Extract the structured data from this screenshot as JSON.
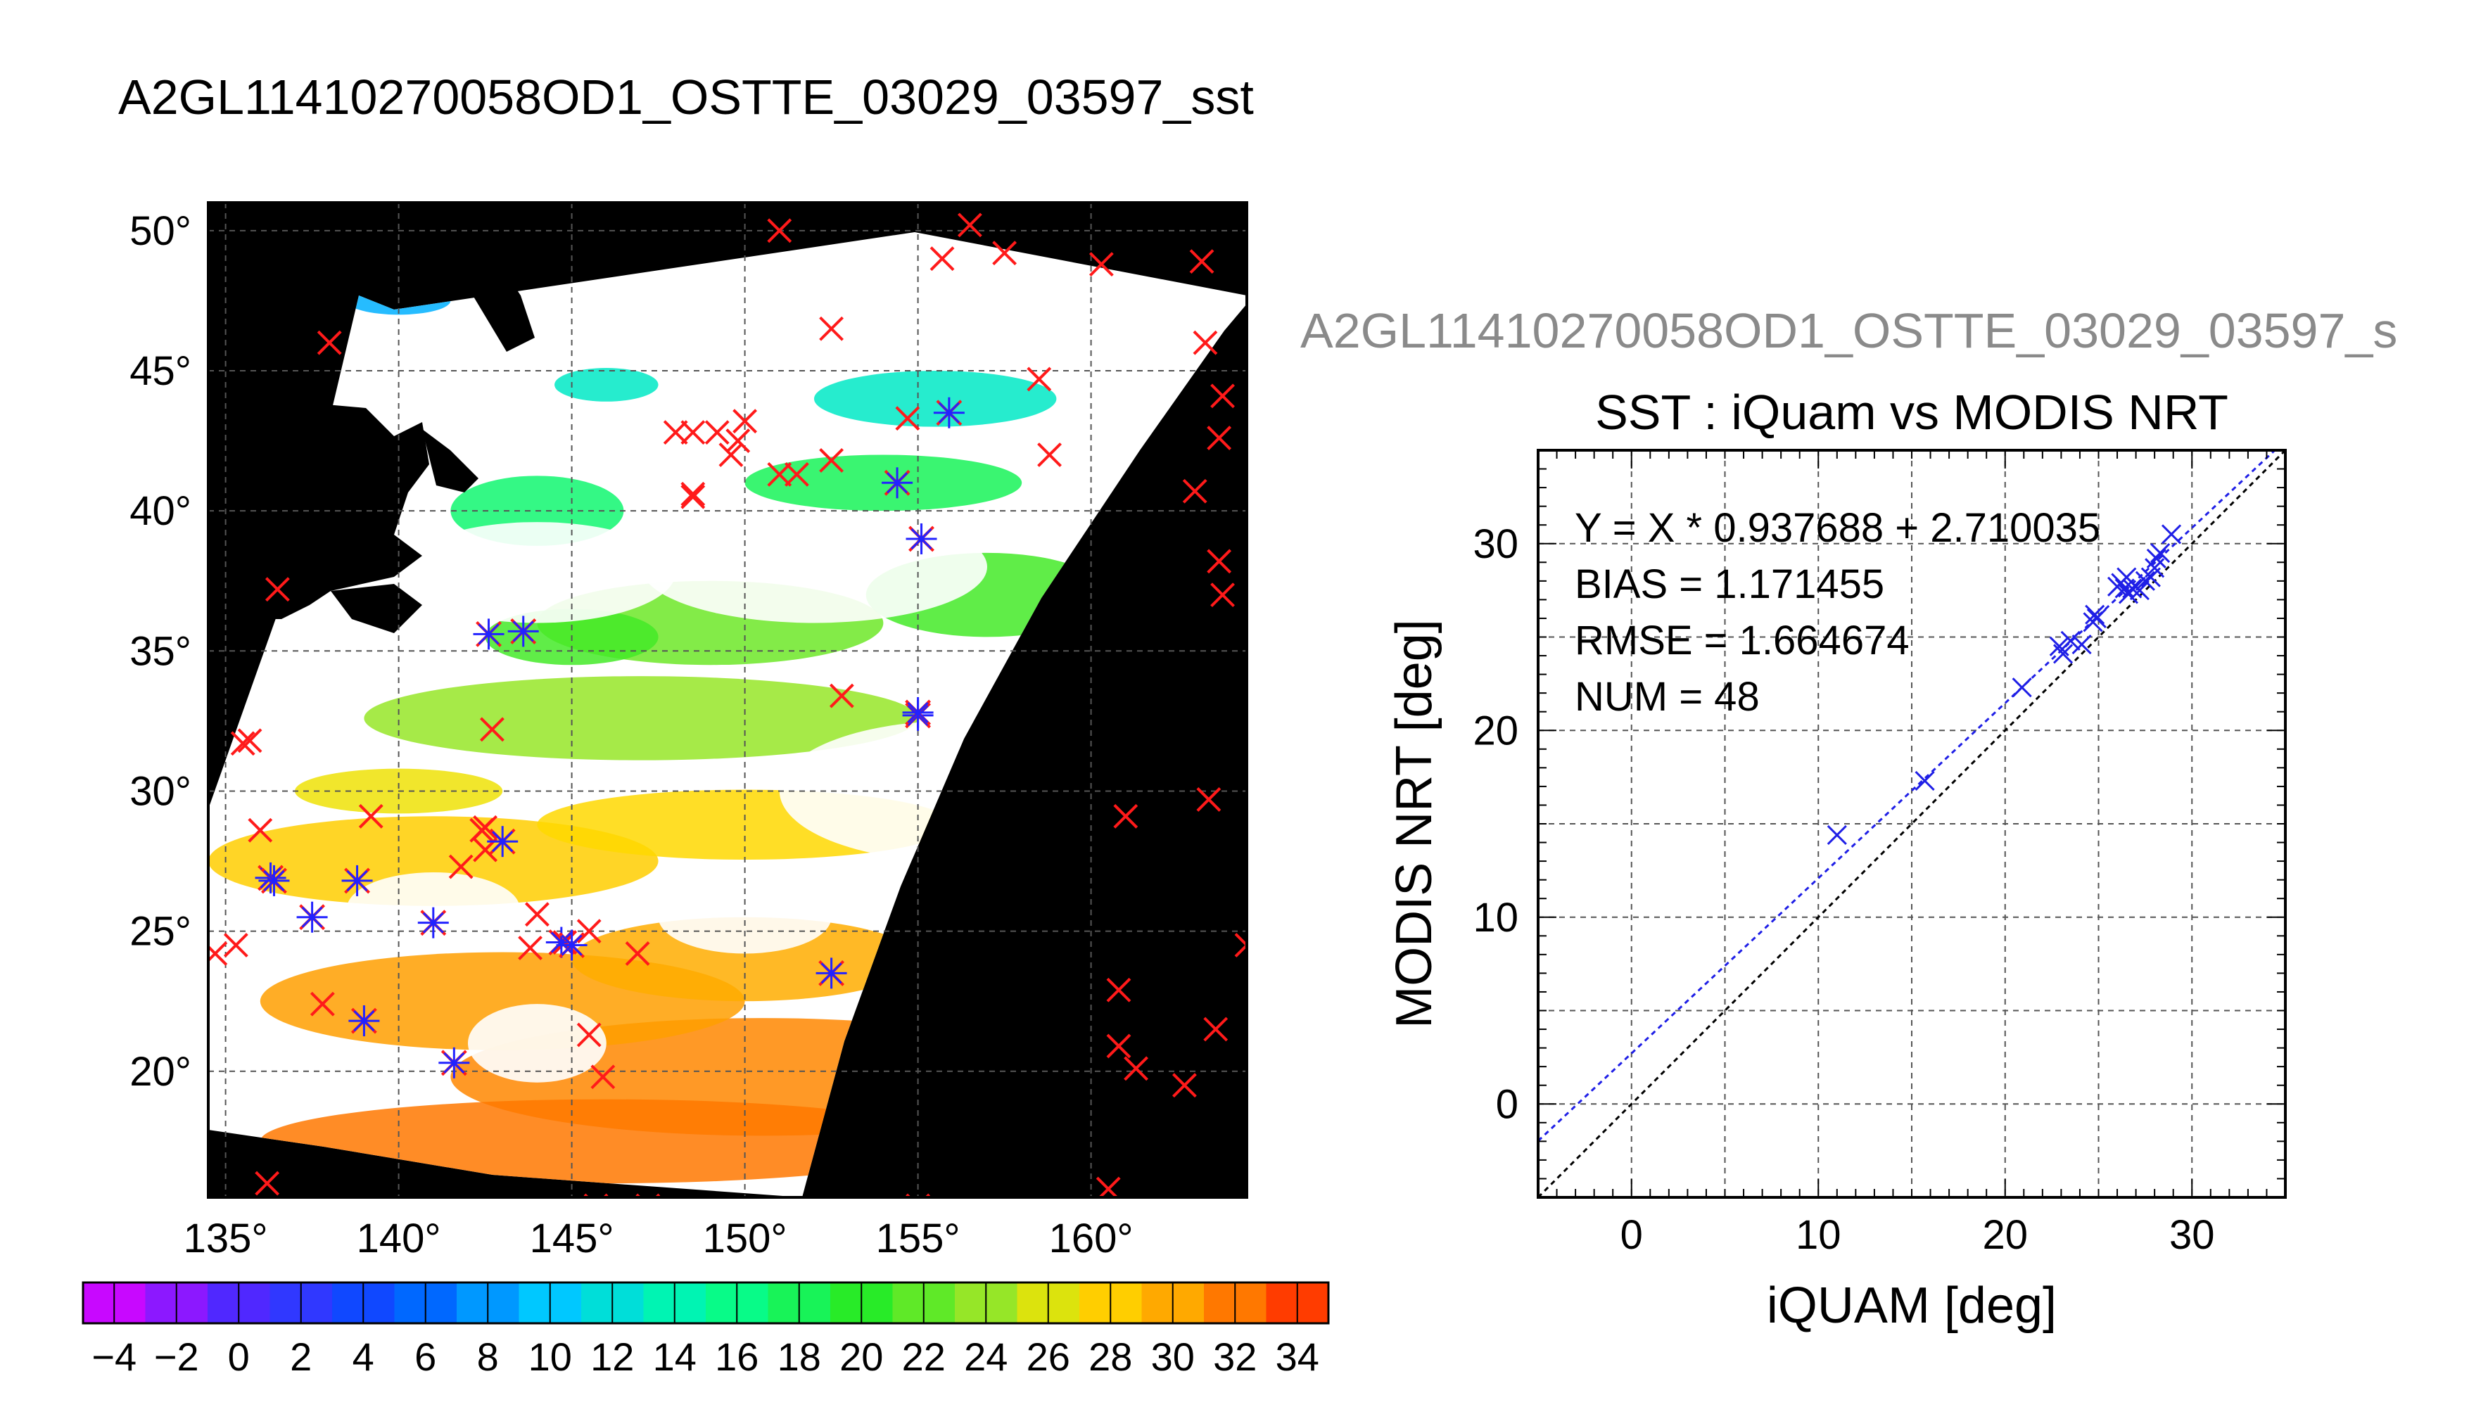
{
  "map_title": "A2GL11410270058OD1_OSTTE_03029_03597_sst",
  "ghost_title": "A2GL11410270058OD1_OSTTE_03029_03597_s",
  "map": {
    "lon_ticks": [
      "135°",
      "140°",
      "145°",
      "150°",
      "155°",
      "160°"
    ],
    "lat_ticks": [
      "20°",
      "25°",
      "30°",
      "35°",
      "40°",
      "45°",
      "50°"
    ],
    "colorbar_ticks": [
      "−4",
      "−2",
      "0",
      "2",
      "4",
      "6",
      "8",
      "10",
      "12",
      "14",
      "16",
      "18",
      "20",
      "22",
      "24",
      "26",
      "28",
      "30",
      "32",
      "34"
    ],
    "colors": {
      "land": "#000000",
      "no_data": "#ffffff",
      "marker_all": "#ff1a1a",
      "marker_match": "#2222ff"
    }
  },
  "chart_data": [
    {
      "type": "heatmap",
      "title": "A2GL11410270058OD1_OSTTE_03029_03597_sst",
      "xlabel": "",
      "ylabel": "",
      "xlim": [
        134.5,
        164.5
      ],
      "ylim": [
        15.5,
        51
      ],
      "colorbar": {
        "min": -5,
        "max": 35,
        "step": 2
      },
      "grid": true
    },
    {
      "type": "scatter",
      "title": "SST : iQuam vs MODIS NRT",
      "xlabel": "iQUAM [deg]",
      "ylabel": "MODIS NRT [deg]",
      "xlim": [
        -5,
        35
      ],
      "ylim": [
        -5,
        35
      ],
      "x_ticks": [
        "0",
        "10",
        "20",
        "30"
      ],
      "y_ticks": [
        "0",
        "10",
        "20",
        "30"
      ],
      "grid": true,
      "annotations": [
        "Y = X * 0.937688 + 2.710035",
        "BIAS = 1.171455",
        "RMSE = 1.664674",
        "NUM = 48"
      ],
      "fit": {
        "slope": 0.937688,
        "intercept": 2.710035
      },
      "x": [
        11.0,
        15.7,
        20.9,
        22.9,
        23.1,
        23.5,
        24.1,
        24.7,
        24.8,
        24.9,
        26.0,
        26.2,
        26.4,
        26.5,
        26.6,
        26.8,
        27.0,
        27.2,
        27.5,
        27.8,
        28.0,
        28.1,
        28.3,
        28.9
      ],
      "y": [
        14.4,
        17.3,
        22.3,
        24.5,
        24.1,
        24.8,
        24.6,
        25.8,
        26.2,
        26.0,
        27.7,
        27.9,
        27.6,
        28.2,
        27.3,
        27.6,
        27.7,
        27.5,
        28.0,
        28.2,
        28.7,
        29.2,
        29.5,
        30.5
      ],
      "colors": {
        "points": "#1f1fe6",
        "fit_line": "#1f1fe6",
        "one_to_one": "#000000"
      }
    }
  ]
}
